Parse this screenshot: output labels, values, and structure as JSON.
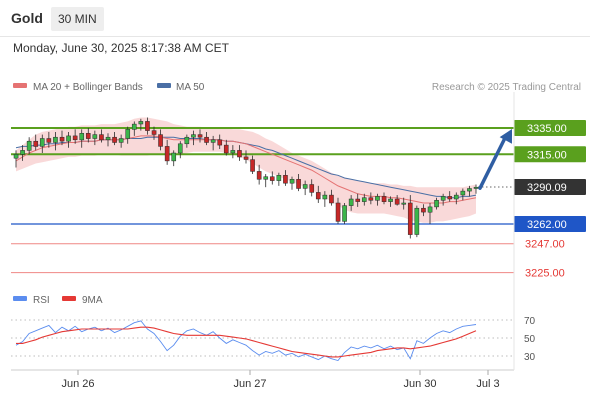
{
  "header": {
    "title": "Gold",
    "timeframe": "30 MIN",
    "timestamp": "Monday, June 30, 2025 8:17:38 AM CET"
  },
  "legend": {
    "ma20": "MA 20 + Bollinger Bands",
    "ma50": "MA 50",
    "credit": "Research © 2025 Trading Central"
  },
  "rsi_legend": {
    "rsi": "RSI",
    "ma": "9MA"
  },
  "colors": {
    "up": "#3bb54a",
    "down": "#c62828",
    "bands": "#f4b9b9",
    "ma20": "#e57373",
    "ma50": "#4a6fa5",
    "resistance": "#5aa01e",
    "pivot": "#1f56c7",
    "support": "#e53935",
    "arrow": "#2f5ea3",
    "rsi": "#5b8def",
    "rsi_ma": "#e53935"
  },
  "chart_data": [
    {
      "type": "candlestick",
      "title": "Gold",
      "timeframe": "30 MIN",
      "x_ticks": [
        "Jun 26",
        "Jun 27",
        "Jun 30",
        "Jul 3"
      ],
      "ylim": [
        3215,
        3345
      ],
      "ohlc": [
        [
          3312,
          3318,
          3305,
          3315
        ],
        [
          3315,
          3322,
          3310,
          3318
        ],
        [
          3318,
          3328,
          3315,
          3325
        ],
        [
          3325,
          3330,
          3318,
          3321
        ],
        [
          3321,
          3330,
          3316,
          3327
        ],
        [
          3327,
          3332,
          3320,
          3324
        ],
        [
          3324,
          3332,
          3318,
          3328
        ],
        [
          3328,
          3333,
          3322,
          3325
        ],
        [
          3325,
          3332,
          3320,
          3329
        ],
        [
          3329,
          3334,
          3323,
          3326
        ],
        [
          3326,
          3334,
          3320,
          3331
        ],
        [
          3331,
          3335,
          3324,
          3327
        ],
        [
          3327,
          3333,
          3322,
          3330
        ],
        [
          3330,
          3334,
          3324,
          3326
        ],
        [
          3326,
          3331,
          3321,
          3328
        ],
        [
          3328,
          3332,
          3322,
          3324
        ],
        [
          3324,
          3330,
          3320,
          3327
        ],
        [
          3327,
          3336,
          3323,
          3334
        ],
        [
          3334,
          3340,
          3329,
          3338
        ],
        [
          3338,
          3342,
          3333,
          3340
        ],
        [
          3340,
          3343,
          3330,
          3333
        ],
        [
          3333,
          3336,
          3326,
          3330
        ],
        [
          3330,
          3334,
          3318,
          3321
        ],
        [
          3321,
          3326,
          3307,
          3310
        ],
        [
          3310,
          3318,
          3306,
          3316
        ],
        [
          3316,
          3325,
          3312,
          3323
        ],
        [
          3323,
          3330,
          3320,
          3328
        ],
        [
          3328,
          3333,
          3322,
          3330
        ],
        [
          3330,
          3334,
          3324,
          3328
        ],
        [
          3328,
          3332,
          3322,
          3324
        ],
        [
          3324,
          3329,
          3318,
          3326
        ],
        [
          3326,
          3330,
          3319,
          3322
        ],
        [
          3322,
          3326,
          3314,
          3316
        ],
        [
          3316,
          3322,
          3312,
          3318
        ],
        [
          3318,
          3322,
          3310,
          3313
        ],
        [
          3313,
          3318,
          3308,
          3311
        ],
        [
          3311,
          3314,
          3300,
          3302
        ],
        [
          3302,
          3307,
          3292,
          3296
        ],
        [
          3296,
          3300,
          3290,
          3298
        ],
        [
          3298,
          3302,
          3292,
          3295
        ],
        [
          3295,
          3301,
          3291,
          3299
        ],
        [
          3299,
          3303,
          3291,
          3293
        ],
        [
          3293,
          3298,
          3288,
          3296
        ],
        [
          3296,
          3300,
          3287,
          3289
        ],
        [
          3289,
          3295,
          3284,
          3292
        ],
        [
          3292,
          3296,
          3283,
          3286
        ],
        [
          3286,
          3291,
          3278,
          3281
        ],
        [
          3281,
          3287,
          3275,
          3284
        ],
        [
          3284,
          3288,
          3276,
          3278
        ],
        [
          3278,
          3282,
          3262,
          3264
        ],
        [
          3264,
          3278,
          3262,
          3276
        ],
        [
          3276,
          3284,
          3272,
          3281
        ],
        [
          3281,
          3285,
          3275,
          3279
        ],
        [
          3279,
          3285,
          3276,
          3282
        ],
        [
          3282,
          3286,
          3277,
          3280
        ],
        [
          3280,
          3285,
          3276,
          3283
        ],
        [
          3283,
          3286,
          3277,
          3279
        ],
        [
          3279,
          3283,
          3275,
          3281
        ],
        [
          3281,
          3284,
          3276,
          3277
        ],
        [
          3277,
          3282,
          3273,
          3278
        ],
        [
          3278,
          3284,
          3251,
          3254
        ],
        [
          3254,
          3276,
          3252,
          3274
        ],
        [
          3274,
          3277,
          3268,
          3271
        ],
        [
          3271,
          3278,
          3262,
          3275
        ],
        [
          3275,
          3282,
          3273,
          3280
        ],
        [
          3280,
          3285,
          3276,
          3283
        ],
        [
          3283,
          3287,
          3279,
          3281
        ],
        [
          3281,
          3286,
          3277,
          3284
        ],
        [
          3284,
          3289,
          3280,
          3287
        ],
        [
          3287,
          3291,
          3283,
          3289
        ],
        [
          3289,
          3292,
          3285,
          3290
        ]
      ],
      "ma20": [
        3310,
        3313,
        3316,
        3318,
        3320,
        3321,
        3322,
        3323,
        3324,
        3324,
        3325,
        3325,
        3325,
        3326,
        3326,
        3326,
        3326,
        3327,
        3328,
        3329,
        3329,
        3329,
        3328,
        3327,
        3326,
        3326,
        3326,
        3326,
        3326,
        3326,
        3326,
        3326,
        3325,
        3325,
        3324,
        3323,
        3321,
        3319,
        3317,
        3315,
        3313,
        3311,
        3309,
        3307,
        3305,
        3303,
        3300,
        3297,
        3294,
        3291,
        3289,
        3287,
        3285,
        3284,
        3283,
        3283,
        3283,
        3282,
        3282,
        3281,
        3280,
        3279,
        3278,
        3278,
        3278,
        3278,
        3279,
        3279,
        3280,
        3281,
        3282
      ],
      "upper_band": [
        3318,
        3322,
        3326,
        3330,
        3332,
        3333,
        3334,
        3335,
        3336,
        3336,
        3337,
        3337,
        3337,
        3338,
        3338,
        3338,
        3339,
        3340,
        3342,
        3343,
        3343,
        3342,
        3341,
        3340,
        3338,
        3337,
        3336,
        3336,
        3336,
        3335,
        3335,
        3335,
        3335,
        3334,
        3334,
        3333,
        3332,
        3330,
        3327,
        3325,
        3322,
        3319,
        3316,
        3314,
        3312,
        3310,
        3307,
        3304,
        3301,
        3299,
        3297,
        3296,
        3295,
        3294,
        3293,
        3293,
        3293,
        3292,
        3292,
        3291,
        3291,
        3290,
        3290,
        3290,
        3290,
        3290,
        3290,
        3290,
        3290,
        3291,
        3292
      ],
      "lower_band": [
        3302,
        3304,
        3306,
        3308,
        3309,
        3310,
        3311,
        3312,
        3313,
        3313,
        3314,
        3314,
        3314,
        3315,
        3315,
        3315,
        3314,
        3314,
        3314,
        3314,
        3314,
        3315,
        3315,
        3314,
        3314,
        3315,
        3316,
        3317,
        3317,
        3317,
        3317,
        3317,
        3316,
        3315,
        3313,
        3311,
        3308,
        3305,
        3302,
        3300,
        3298,
        3296,
        3294,
        3292,
        3290,
        3288,
        3285,
        3282,
        3279,
        3276,
        3273,
        3271,
        3270,
        3270,
        3270,
        3270,
        3270,
        3269,
        3268,
        3267,
        3265,
        3264,
        3263,
        3263,
        3264,
        3264,
        3265,
        3266,
        3267,
        3268,
        3270
      ],
      "ma50": [
        3320,
        3321,
        3321,
        3322,
        3322,
        3323,
        3323,
        3324,
        3324,
        3324,
        3325,
        3325,
        3325,
        3326,
        3326,
        3326,
        3326,
        3327,
        3327,
        3327,
        3328,
        3328,
        3328,
        3328,
        3328,
        3327,
        3327,
        3327,
        3327,
        3326,
        3326,
        3326,
        3325,
        3325,
        3324,
        3323,
        3322,
        3321,
        3319,
        3318,
        3316,
        3314,
        3312,
        3310,
        3308,
        3306,
        3304,
        3302,
        3300,
        3299,
        3297,
        3296,
        3295,
        3294,
        3293,
        3292,
        3291,
        3290,
        3289,
        3288,
        3287,
        3286,
        3285,
        3284,
        3283,
        3283,
        3282,
        3282,
        3283,
        3283,
        3284
      ],
      "levels": [
        {
          "value": 3335.0,
          "label": "3335.00",
          "kind": "resistance"
        },
        {
          "value": 3315.0,
          "label": "3315.00",
          "kind": "resistance"
        },
        {
          "value": 3290.09,
          "label": "3290.09",
          "kind": "last"
        },
        {
          "value": 3262.0,
          "label": "3262.00",
          "kind": "pivot"
        },
        {
          "value": 3247.0,
          "label": "3247.00",
          "kind": "support"
        },
        {
          "value": 3225.0,
          "label": "3225.00",
          "kind": "support"
        }
      ],
      "projection": {
        "from": 3290,
        "to": 3335,
        "direction": "up"
      }
    },
    {
      "type": "line",
      "title": "RSI",
      "y_ticks": [
        70,
        50,
        30
      ],
      "ylim": [
        22,
        78
      ],
      "series": [
        {
          "name": "RSI",
          "values": [
            42,
            46,
            55,
            58,
            61,
            64,
            56,
            62,
            58,
            63,
            57,
            60,
            62,
            58,
            61,
            56,
            59,
            63,
            67,
            69,
            60,
            55,
            46,
            36,
            42,
            52,
            58,
            60,
            56,
            53,
            57,
            50,
            44,
            48,
            45,
            42,
            36,
            31,
            35,
            33,
            36,
            31,
            33,
            29,
            32,
            29,
            26,
            30,
            27,
            25,
            34,
            40,
            38,
            41,
            39,
            42,
            38,
            41,
            37,
            39,
            27,
            47,
            44,
            50,
            55,
            58,
            56,
            60,
            63,
            64,
            65
          ]
        },
        {
          "name": "9MA",
          "values": [
            44,
            44,
            46,
            48,
            51,
            53,
            55,
            57,
            58,
            59,
            60,
            60,
            60,
            60,
            60,
            60,
            60,
            60,
            61,
            62,
            62,
            61,
            59,
            57,
            55,
            54,
            53,
            53,
            53,
            53,
            53,
            53,
            52,
            51,
            50,
            49,
            47,
            45,
            43,
            41,
            39,
            37,
            35,
            34,
            33,
            32,
            31,
            30,
            29,
            29,
            30,
            31,
            32,
            33,
            34,
            36,
            37,
            38,
            39,
            39,
            38,
            39,
            40,
            41,
            43,
            45,
            47,
            49,
            52,
            55,
            58
          ]
        }
      ]
    }
  ]
}
